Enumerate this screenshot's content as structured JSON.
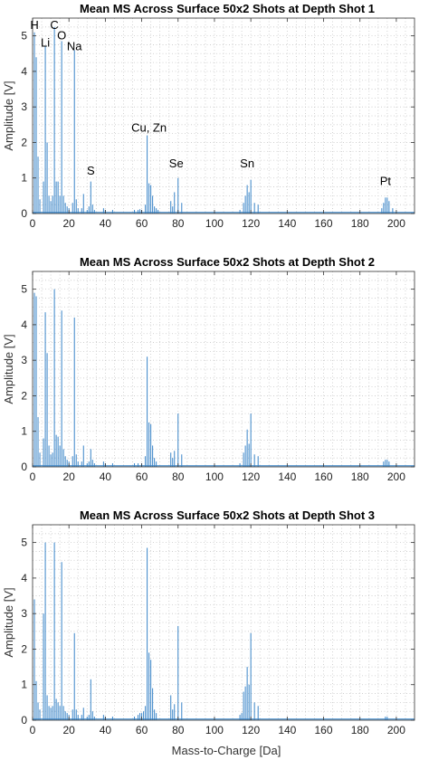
{
  "colors": {
    "series": "#3a85c8",
    "grid": "#c8c8c8",
    "axis": "#333333"
  },
  "xlabel": "Mass-to-Charge [Da]",
  "chart_data": [
    {
      "type": "line",
      "title": "Mean MS Across Surface 50x2 Shots at Depth Shot 1",
      "xlabel": "",
      "ylabel": "Amplitude [V]",
      "xlim": [
        0,
        210
      ],
      "ylim": [
        0,
        5.5
      ],
      "xticks": [
        0,
        20,
        40,
        60,
        80,
        100,
        120,
        140,
        160,
        180,
        200
      ],
      "yticks": [
        0,
        1,
        2,
        3,
        4,
        5
      ],
      "grid": true,
      "annotations": [
        {
          "text": "H",
          "x": 1,
          "y": 5.2
        },
        {
          "text": "Li",
          "x": 7,
          "y": 4.7
        },
        {
          "text": "C",
          "x": 12,
          "y": 5.2
        },
        {
          "text": "O",
          "x": 16,
          "y": 4.9
        },
        {
          "text": "Na",
          "x": 23,
          "y": 4.6
        },
        {
          "text": "S",
          "x": 32,
          "y": 1.1
        },
        {
          "text": "Cu, Zn",
          "x": 64,
          "y": 2.3
        },
        {
          "text": "Se",
          "x": 79,
          "y": 1.3
        },
        {
          "text": "Sn",
          "x": 118,
          "y": 1.3
        },
        {
          "text": "Pt",
          "x": 194,
          "y": 0.8
        }
      ],
      "peaks": [
        [
          1,
          5.1
        ],
        [
          2,
          4.4
        ],
        [
          3,
          1.6
        ],
        [
          4,
          0.4
        ],
        [
          6,
          0.9
        ],
        [
          7,
          4.7
        ],
        [
          8,
          2.0
        ],
        [
          9,
          0.5
        ],
        [
          10,
          0.35
        ],
        [
          11,
          0.5
        ],
        [
          12,
          5.25
        ],
        [
          13,
          0.9
        ],
        [
          14,
          0.9
        ],
        [
          15,
          0.5
        ],
        [
          16,
          4.85
        ],
        [
          17,
          0.5
        ],
        [
          18,
          0.3
        ],
        [
          19,
          0.2
        ],
        [
          20,
          0.15
        ],
        [
          22,
          0.3
        ],
        [
          23,
          4.6
        ],
        [
          24,
          0.4
        ],
        [
          25,
          0.15
        ],
        [
          27,
          0.15
        ],
        [
          28,
          0.55
        ],
        [
          30,
          0.1
        ],
        [
          31,
          0.2
        ],
        [
          32,
          0.9
        ],
        [
          33,
          0.25
        ],
        [
          34,
          0.1
        ],
        [
          39,
          0.15
        ],
        [
          40,
          0.1
        ],
        [
          44,
          0.1
        ],
        [
          56,
          0.1
        ],
        [
          58,
          0.1
        ],
        [
          59,
          0.12
        ],
        [
          60,
          0.1
        ],
        [
          62,
          0.25
        ],
        [
          63,
          2.2
        ],
        [
          64,
          0.85
        ],
        [
          65,
          0.8
        ],
        [
          66,
          0.5
        ],
        [
          67,
          0.2
        ],
        [
          68,
          0.15
        ],
        [
          69,
          0.1
        ],
        [
          76,
          0.35
        ],
        [
          77,
          0.2
        ],
        [
          78,
          0.6
        ],
        [
          80,
          1.0
        ],
        [
          82,
          0.3
        ],
        [
          114,
          0.1
        ],
        [
          116,
          0.3
        ],
        [
          117,
          0.5
        ],
        [
          118,
          0.8
        ],
        [
          119,
          0.6
        ],
        [
          120,
          0.95
        ],
        [
          122,
          0.3
        ],
        [
          124,
          0.25
        ],
        [
          192,
          0.15
        ],
        [
          193,
          0.3
        ],
        [
          194,
          0.45
        ],
        [
          195,
          0.45
        ],
        [
          196,
          0.35
        ],
        [
          198,
          0.15
        ]
      ]
    },
    {
      "type": "line",
      "title": "Mean MS Across Surface 50x2 Shots at Depth Shot 2",
      "xlabel": "",
      "ylabel": "Amplitude [V]",
      "xlim": [
        0,
        210
      ],
      "ylim": [
        0,
        5.5
      ],
      "xticks": [
        0,
        20,
        40,
        60,
        80,
        100,
        120,
        140,
        160,
        180,
        200
      ],
      "yticks": [
        0,
        1,
        2,
        3,
        4,
        5
      ],
      "grid": true,
      "annotations": [],
      "peaks": [
        [
          1,
          4.9
        ],
        [
          2,
          4.8
        ],
        [
          3,
          1.4
        ],
        [
          4,
          0.4
        ],
        [
          6,
          0.8
        ],
        [
          7,
          4.35
        ],
        [
          8,
          3.2
        ],
        [
          9,
          0.6
        ],
        [
          10,
          0.35
        ],
        [
          11,
          0.4
        ],
        [
          12,
          5.0
        ],
        [
          13,
          0.9
        ],
        [
          14,
          0.85
        ],
        [
          15,
          0.6
        ],
        [
          16,
          4.4
        ],
        [
          17,
          0.5
        ],
        [
          18,
          0.3
        ],
        [
          19,
          0.2
        ],
        [
          20,
          0.15
        ],
        [
          22,
          0.3
        ],
        [
          23,
          4.2
        ],
        [
          24,
          0.35
        ],
        [
          25,
          0.15
        ],
        [
          27,
          0.15
        ],
        [
          28,
          0.6
        ],
        [
          30,
          0.1
        ],
        [
          31,
          0.15
        ],
        [
          32,
          0.5
        ],
        [
          33,
          0.2
        ],
        [
          34,
          0.1
        ],
        [
          39,
          0.15
        ],
        [
          40,
          0.1
        ],
        [
          44,
          0.1
        ],
        [
          56,
          0.1
        ],
        [
          58,
          0.1
        ],
        [
          60,
          0.1
        ],
        [
          62,
          0.3
        ],
        [
          63,
          3.1
        ],
        [
          64,
          1.25
        ],
        [
          65,
          1.2
        ],
        [
          66,
          0.6
        ],
        [
          67,
          0.25
        ],
        [
          68,
          0.15
        ],
        [
          76,
          0.4
        ],
        [
          77,
          0.25
        ],
        [
          78,
          0.45
        ],
        [
          80,
          1.5
        ],
        [
          82,
          0.35
        ],
        [
          114,
          0.1
        ],
        [
          116,
          0.4
        ],
        [
          117,
          0.6
        ],
        [
          118,
          1.05
        ],
        [
          119,
          0.65
        ],
        [
          120,
          1.5
        ],
        [
          122,
          0.35
        ],
        [
          124,
          0.3
        ],
        [
          193,
          0.15
        ],
        [
          194,
          0.2
        ],
        [
          195,
          0.2
        ],
        [
          196,
          0.15
        ]
      ]
    },
    {
      "type": "line",
      "title": "Mean MS Across Surface 50x2 Shots at Depth Shot 3",
      "xlabel": "Mass-to-Charge [Da]",
      "ylabel": "Amplitude [V]",
      "xlim": [
        0,
        210
      ],
      "ylim": [
        0,
        5.5
      ],
      "xticks": [
        0,
        20,
        40,
        60,
        80,
        100,
        120,
        140,
        160,
        180,
        200
      ],
      "yticks": [
        0,
        1,
        2,
        3,
        4,
        5
      ],
      "grid": true,
      "annotations": [],
      "peaks": [
        [
          1,
          3.4
        ],
        [
          2,
          1.1
        ],
        [
          3,
          0.5
        ],
        [
          4,
          0.3
        ],
        [
          6,
          3.0
        ],
        [
          7,
          5.0
        ],
        [
          8,
          0.7
        ],
        [
          9,
          0.4
        ],
        [
          10,
          0.35
        ],
        [
          11,
          0.4
        ],
        [
          12,
          5.0
        ],
        [
          13,
          0.6
        ],
        [
          14,
          0.5
        ],
        [
          15,
          0.4
        ],
        [
          16,
          4.45
        ],
        [
          17,
          0.4
        ],
        [
          18,
          0.25
        ],
        [
          19,
          0.2
        ],
        [
          20,
          0.15
        ],
        [
          22,
          0.3
        ],
        [
          23,
          2.45
        ],
        [
          24,
          0.3
        ],
        [
          25,
          0.15
        ],
        [
          27,
          0.15
        ],
        [
          28,
          0.35
        ],
        [
          30,
          0.1
        ],
        [
          31,
          0.15
        ],
        [
          32,
          1.15
        ],
        [
          33,
          0.25
        ],
        [
          34,
          0.1
        ],
        [
          39,
          0.15
        ],
        [
          40,
          0.1
        ],
        [
          44,
          0.1
        ],
        [
          56,
          0.1
        ],
        [
          58,
          0.15
        ],
        [
          59,
          0.2
        ],
        [
          60,
          0.2
        ],
        [
          61,
          0.25
        ],
        [
          62,
          0.4
        ],
        [
          63,
          4.85
        ],
        [
          64,
          1.9
        ],
        [
          65,
          1.7
        ],
        [
          66,
          0.9
        ],
        [
          67,
          0.3
        ],
        [
          68,
          0.2
        ],
        [
          76,
          0.7
        ],
        [
          77,
          0.3
        ],
        [
          78,
          0.45
        ],
        [
          80,
          2.65
        ],
        [
          82,
          0.5
        ],
        [
          114,
          0.15
        ],
        [
          115,
          0.2
        ],
        [
          116,
          0.8
        ],
        [
          117,
          0.95
        ],
        [
          118,
          1.5
        ],
        [
          119,
          1.0
        ],
        [
          120,
          2.45
        ],
        [
          122,
          0.5
        ],
        [
          124,
          0.4
        ],
        [
          194,
          0.1
        ],
        [
          195,
          0.1
        ]
      ]
    }
  ]
}
